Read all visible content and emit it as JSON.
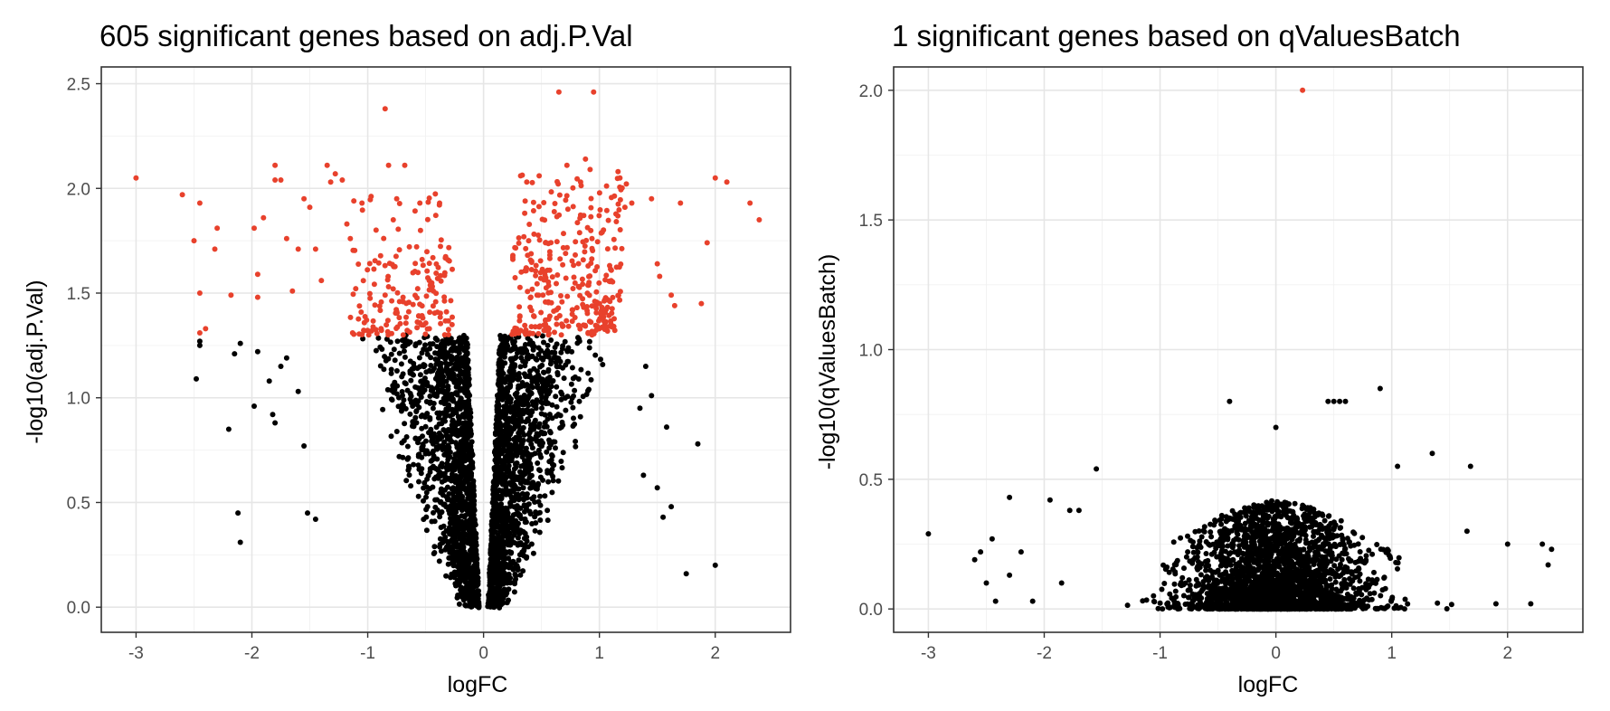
{
  "chart_data": [
    {
      "type": "scatter",
      "title": "605 significant genes based on adj.P.Val",
      "xlabel": "logFC",
      "ylabel": "-log10(adj.P.Val)",
      "xlim": [
        -3.3,
        2.65
      ],
      "ylim": [
        -0.12,
        2.58
      ],
      "xticks": [
        -3,
        -2,
        -1,
        0,
        1,
        2
      ],
      "xtick_labels": [
        "-3",
        "-2",
        "-1",
        "0",
        "1",
        "2"
      ],
      "yticks": [
        0.0,
        0.5,
        1.0,
        1.5,
        2.0,
        2.5
      ],
      "ytick_labels": [
        "0.0",
        "0.5",
        "1.0",
        "1.5",
        "2.0",
        "2.5"
      ],
      "grid": true,
      "significant_count": 605,
      "significance_threshold": 1.3,
      "colors": {
        "significant": "#e8412c",
        "not_significant": "#000000"
      },
      "series": [
        {
          "role": "significant",
          "points": [
            [
              -3.0,
              2.05
            ],
            [
              -2.6,
              1.97
            ],
            [
              -2.45,
              1.93
            ],
            [
              -2.5,
              1.75
            ],
            [
              -2.45,
              1.5
            ],
            [
              -2.45,
              1.31
            ],
            [
              -2.4,
              1.33
            ],
            [
              -2.3,
              1.81
            ],
            [
              -2.32,
              1.71
            ],
            [
              -2.18,
              1.49
            ],
            [
              -1.98,
              1.81
            ],
            [
              -1.95,
              1.59
            ],
            [
              -1.9,
              1.86
            ],
            [
              -1.95,
              1.48
            ],
            [
              -1.8,
              2.11
            ],
            [
              -1.8,
              2.04
            ],
            [
              -1.75,
              2.04
            ],
            [
              -1.7,
              1.76
            ],
            [
              -1.65,
              1.51
            ],
            [
              -1.6,
              1.71
            ],
            [
              -1.55,
              1.95
            ],
            [
              -1.5,
              1.91
            ],
            [
              -1.45,
              1.71
            ],
            [
              -1.4,
              1.56
            ],
            [
              -1.35,
              2.11
            ],
            [
              -1.32,
              2.03
            ],
            [
              -1.28,
              2.07
            ],
            [
              -1.22,
              2.04
            ],
            [
              -1.18,
              1.83
            ],
            [
              -1.15,
              1.76
            ],
            [
              -1.12,
              1.94
            ],
            [
              -1.05,
              1.93
            ],
            [
              -0.85,
              2.38
            ],
            [
              -0.82,
              2.11
            ],
            [
              -0.68,
              2.11
            ],
            [
              -0.75,
              1.95
            ],
            [
              -0.55,
              1.93
            ],
            [
              -0.38,
              1.93
            ],
            [
              -0.32,
              1.41
            ],
            [
              2.0,
              2.05
            ],
            [
              2.1,
              2.03
            ],
            [
              2.3,
              1.93
            ],
            [
              2.38,
              1.85
            ],
            [
              1.93,
              1.74
            ],
            [
              1.88,
              1.45
            ],
            [
              1.7,
              1.93
            ],
            [
              1.45,
              1.95
            ],
            [
              1.65,
              1.44
            ],
            [
              1.62,
              1.49
            ],
            [
              1.5,
              1.64
            ],
            [
              1.52,
              1.58
            ],
            [
              0.65,
              2.46
            ],
            [
              0.95,
              2.46
            ],
            [
              0.88,
              2.14
            ],
            [
              0.92,
              2.09
            ],
            [
              0.72,
              2.11
            ],
            [
              0.32,
              2.06
            ],
            [
              0.48,
              2.06
            ],
            [
              1.28,
              1.93
            ],
            [
              1.22,
              1.91
            ]
          ],
          "clusters": [
            {
              "n": 150,
              "x": [
                -1.15,
                -0.26
              ],
              "y": [
                1.3,
                1.72
              ]
            },
            {
              "n": 20,
              "x": [
                -1.05,
                -0.3
              ],
              "y": [
                1.72,
                2.0
              ]
            },
            {
              "n": 260,
              "x": [
                0.24,
                1.2
              ],
              "y": [
                1.3,
                1.78
              ]
            },
            {
              "n": 65,
              "x": [
                0.28,
                1.25
              ],
              "y": [
                1.78,
                2.08
              ]
            }
          ]
        },
        {
          "role": "not_significant",
          "points": [
            [
              -2.45,
              1.27
            ],
            [
              -2.45,
              1.25
            ],
            [
              -2.48,
              1.09
            ],
            [
              -2.2,
              0.85
            ],
            [
              -2.15,
              1.21
            ],
            [
              -2.1,
              1.26
            ],
            [
              -2.12,
              0.45
            ],
            [
              -2.1,
              0.31
            ],
            [
              -1.98,
              0.96
            ],
            [
              -1.95,
              1.22
            ],
            [
              -1.85,
              1.08
            ],
            [
              -1.82,
              0.92
            ],
            [
              -1.8,
              0.88
            ],
            [
              -1.75,
              1.15
            ],
            [
              -1.7,
              1.19
            ],
            [
              -1.6,
              1.03
            ],
            [
              -1.55,
              0.77
            ],
            [
              -1.52,
              0.45
            ],
            [
              -1.45,
              0.42
            ],
            [
              2.0,
              0.2
            ],
            [
              1.75,
              0.16
            ],
            [
              1.85,
              0.78
            ],
            [
              1.62,
              0.48
            ],
            [
              1.55,
              0.43
            ],
            [
              1.5,
              0.57
            ],
            [
              1.58,
              0.86
            ],
            [
              1.4,
              1.15
            ],
            [
              1.45,
              1.01
            ],
            [
              1.35,
              0.95
            ],
            [
              1.38,
              0.63
            ]
          ],
          "volcano_cloud": {
            "n": 3000,
            "abs_x_max": 1.35,
            "y_max": 1.3
          }
        }
      ]
    },
    {
      "type": "scatter",
      "title": "1 significant genes based on qValuesBatch",
      "xlabel": "logFC",
      "ylabel": "-log10(qValuesBatch)",
      "xlim": [
        -3.3,
        2.65
      ],
      "ylim": [
        -0.09,
        2.09
      ],
      "xticks": [
        -3,
        -2,
        -1,
        0,
        1,
        2
      ],
      "xtick_labels": [
        "-3",
        "-2",
        "-1",
        "0",
        "1",
        "2"
      ],
      "yticks": [
        0.0,
        0.5,
        1.0,
        1.5,
        2.0
      ],
      "ytick_labels": [
        "0.0",
        "0.5",
        "1.0",
        "1.5",
        "2.0"
      ],
      "grid": true,
      "significant_count": 1,
      "colors": {
        "significant": "#e8412c",
        "not_significant": "#000000"
      },
      "series": [
        {
          "role": "significant",
          "points": [
            [
              0.23,
              2.0
            ]
          ]
        },
        {
          "role": "not_significant",
          "points": [
            [
              -3.0,
              0.29
            ],
            [
              -2.6,
              0.19
            ],
            [
              -2.55,
              0.22
            ],
            [
              -2.5,
              0.1
            ],
            [
              -2.45,
              0.27
            ],
            [
              -2.42,
              0.03
            ],
            [
              -2.3,
              0.43
            ],
            [
              -2.3,
              0.13
            ],
            [
              -2.2,
              0.22
            ],
            [
              -2.1,
              0.03
            ],
            [
              -1.95,
              0.42
            ],
            [
              -1.85,
              0.1
            ],
            [
              -1.78,
              0.38
            ],
            [
              -1.7,
              0.38
            ],
            [
              -1.55,
              0.54
            ],
            [
              -0.4,
              0.8
            ],
            [
              0.0,
              0.7
            ],
            [
              0.45,
              0.8
            ],
            [
              0.5,
              0.8
            ],
            [
              0.55,
              0.8
            ],
            [
              0.6,
              0.8
            ],
            [
              0.9,
              0.85
            ],
            [
              1.05,
              0.55
            ],
            [
              1.35,
              0.6
            ],
            [
              1.68,
              0.55
            ],
            [
              1.65,
              0.3
            ],
            [
              1.9,
              0.02
            ],
            [
              2.0,
              0.25
            ],
            [
              2.2,
              0.02
            ],
            [
              2.3,
              0.25
            ],
            [
              2.38,
              0.23
            ],
            [
              2.35,
              0.17
            ]
          ],
          "cloud": {
            "n": 2600,
            "x": [
              -1.6,
              1.6
            ],
            "y_max": 0.42
          }
        }
      ]
    }
  ]
}
